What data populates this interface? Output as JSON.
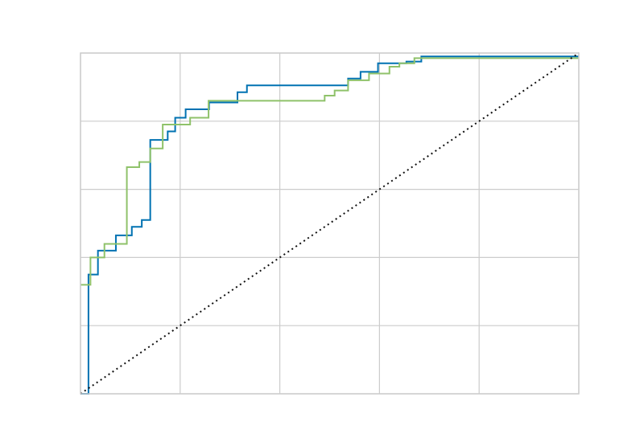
{
  "chart_data": {
    "type": "line",
    "title": "",
    "xlabel": "",
    "ylabel": "",
    "xlim": [
      0,
      1
    ],
    "ylim": [
      0,
      1
    ],
    "xticks": [
      0,
      0.2,
      0.4,
      0.6,
      0.8,
      1.0
    ],
    "yticks": [
      0,
      0.2,
      0.4,
      0.6,
      0.8,
      1.0
    ],
    "grid": true,
    "legend": "none",
    "series": [
      {
        "color": "#0072b2",
        "style": "step",
        "points": [
          [
            0,
            0
          ],
          [
            0.016,
            0
          ],
          [
            0.016,
            0.35
          ],
          [
            0.035,
            0.35
          ],
          [
            0.035,
            0.42
          ],
          [
            0.071,
            0.42
          ],
          [
            0.071,
            0.465
          ],
          [
            0.103,
            0.465
          ],
          [
            0.103,
            0.49
          ],
          [
            0.123,
            0.49
          ],
          [
            0.123,
            0.51
          ],
          [
            0.14,
            0.51
          ],
          [
            0.14,
            0.745
          ],
          [
            0.175,
            0.745
          ],
          [
            0.175,
            0.77
          ],
          [
            0.19,
            0.77
          ],
          [
            0.19,
            0.81
          ],
          [
            0.211,
            0.81
          ],
          [
            0.211,
            0.835
          ],
          [
            0.258,
            0.835
          ],
          [
            0.258,
            0.855
          ],
          [
            0.315,
            0.855
          ],
          [
            0.315,
            0.885
          ],
          [
            0.334,
            0.885
          ],
          [
            0.334,
            0.905
          ],
          [
            0.537,
            0.905
          ],
          [
            0.537,
            0.925
          ],
          [
            0.562,
            0.925
          ],
          [
            0.562,
            0.945
          ],
          [
            0.597,
            0.945
          ],
          [
            0.597,
            0.97
          ],
          [
            0.654,
            0.97
          ],
          [
            0.654,
            0.975
          ],
          [
            0.684,
            0.975
          ],
          [
            0.684,
            0.99
          ],
          [
            1.0,
            0.99
          ]
        ]
      },
      {
        "color": "#8fc26a",
        "style": "step",
        "points": [
          [
            0,
            0.32
          ],
          [
            0.02,
            0.32
          ],
          [
            0.02,
            0.4
          ],
          [
            0.048,
            0.4
          ],
          [
            0.048,
            0.44
          ],
          [
            0.093,
            0.44
          ],
          [
            0.093,
            0.665
          ],
          [
            0.118,
            0.665
          ],
          [
            0.118,
            0.68
          ],
          [
            0.14,
            0.68
          ],
          [
            0.14,
            0.72
          ],
          [
            0.165,
            0.72
          ],
          [
            0.165,
            0.79
          ],
          [
            0.22,
            0.79
          ],
          [
            0.22,
            0.81
          ],
          [
            0.257,
            0.81
          ],
          [
            0.257,
            0.86
          ],
          [
            0.49,
            0.86
          ],
          [
            0.49,
            0.875
          ],
          [
            0.51,
            0.875
          ],
          [
            0.51,
            0.89
          ],
          [
            0.537,
            0.89
          ],
          [
            0.537,
            0.92
          ],
          [
            0.579,
            0.92
          ],
          [
            0.579,
            0.94
          ],
          [
            0.62,
            0.94
          ],
          [
            0.62,
            0.96
          ],
          [
            0.64,
            0.96
          ],
          [
            0.64,
            0.97
          ],
          [
            0.67,
            0.97
          ],
          [
            0.67,
            0.985
          ],
          [
            1.0,
            0.985
          ]
        ]
      },
      {
        "color": "#111111",
        "style": "dotted",
        "points": [
          [
            0,
            0
          ],
          [
            1.0,
            1.0
          ]
        ]
      }
    ]
  }
}
